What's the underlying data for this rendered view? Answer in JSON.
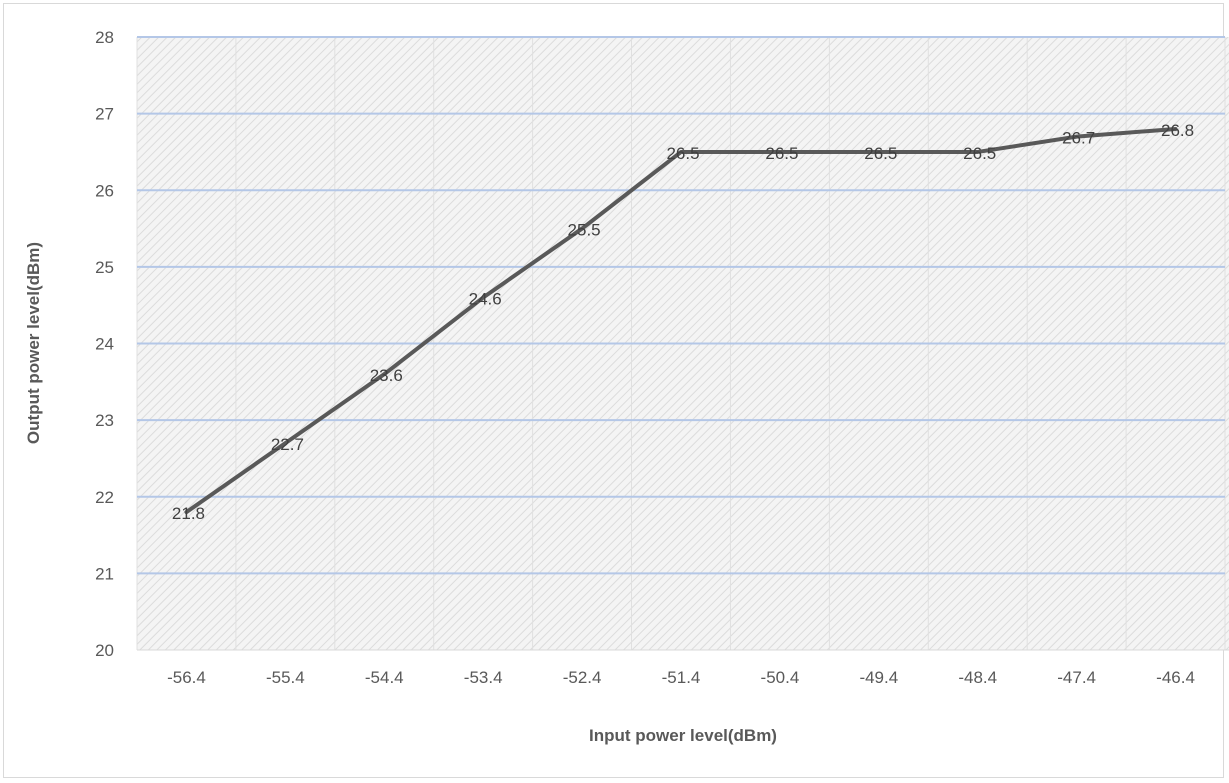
{
  "chart_data": {
    "type": "line",
    "title": "",
    "xlabel": "Input power level(dBm)",
    "ylabel": "Output power level(dBm)",
    "ylim": [
      20,
      28
    ],
    "yticks": [
      "20",
      "21",
      "22",
      "23",
      "24",
      "25",
      "26",
      "27",
      "28"
    ],
    "categories": [
      "-56.4",
      "-55.4",
      "-54.4",
      "-53.4",
      "-52.4",
      "-51.4",
      "-50.4",
      "-49.4",
      "-48.4",
      "-47.4",
      "-46.4"
    ],
    "series": [
      {
        "values": [
          21.8,
          22.7,
          23.6,
          24.6,
          25.5,
          26.5,
          26.5,
          26.5,
          26.5,
          26.7,
          26.8
        ],
        "labels": [
          "21.8",
          "22.7",
          "23.6",
          "24.6",
          "25.5",
          "26.5",
          "26.5",
          "26.5",
          "26.5",
          "26.7",
          "26.8"
        ],
        "color": "#595959"
      }
    ],
    "grid": true,
    "gridline_color": "#b4c7e7",
    "legend": "none"
  }
}
